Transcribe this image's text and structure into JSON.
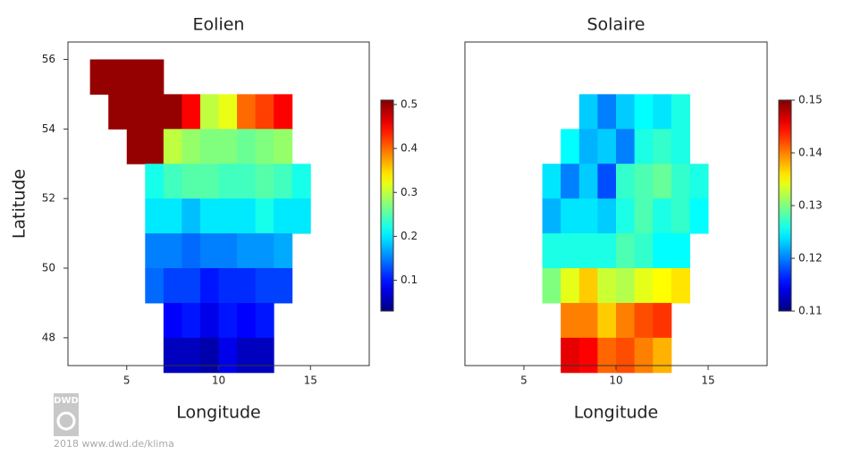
{
  "chart_data": [
    {
      "type": "heatmap",
      "title": "Eolien",
      "xlabel": "Longitude",
      "ylabel": "Latitude",
      "x": [
        3.5,
        4.5,
        5.5,
        6.5,
        7.5,
        8.5,
        9.5,
        10.5,
        11.5,
        12.5,
        13.5,
        14.5
      ],
      "y": [
        55.5,
        54.5,
        53.5,
        52.5,
        51.5,
        50.5,
        49.5,
        48.5,
        47.5
      ],
      "values": [
        [
          0.5,
          0.5,
          0.5,
          0.5,
          null,
          null,
          null,
          null,
          null,
          null,
          null,
          null
        ],
        [
          null,
          0.5,
          0.5,
          0.5,
          0.5,
          0.45,
          0.3,
          0.32,
          0.4,
          0.42,
          0.45,
          null
        ],
        [
          null,
          null,
          0.5,
          0.5,
          0.3,
          0.28,
          0.27,
          0.27,
          0.26,
          0.27,
          0.28,
          null
        ],
        [
          null,
          null,
          null,
          0.22,
          0.24,
          0.25,
          0.25,
          0.24,
          0.24,
          0.25,
          0.24,
          0.22
        ],
        [
          null,
          null,
          null,
          0.2,
          0.2,
          0.18,
          0.2,
          0.2,
          0.2,
          0.22,
          0.2,
          0.2
        ],
        [
          null,
          null,
          null,
          0.15,
          0.15,
          0.14,
          0.15,
          0.15,
          0.16,
          0.16,
          0.17,
          null
        ],
        [
          null,
          null,
          null,
          0.14,
          0.12,
          0.12,
          0.1,
          0.11,
          0.11,
          0.12,
          0.12,
          null
        ],
        [
          null,
          null,
          null,
          null,
          0.09,
          0.1,
          0.08,
          0.1,
          0.09,
          0.1,
          null,
          null
        ],
        [
          null,
          null,
          null,
          null,
          0.06,
          0.06,
          0.05,
          0.08,
          0.06,
          0.06,
          null,
          null
        ]
      ],
      "xlim": [
        1.8,
        18.2
      ],
      "ylim": [
        47.2,
        56.5
      ],
      "xticks": [
        5,
        10,
        15
      ],
      "yticks": [
        48,
        50,
        52,
        54,
        56
      ],
      "colormap": "jet",
      "clim": [
        0.03,
        0.51
      ],
      "cticks": [
        0.1,
        0.2,
        0.3,
        0.4,
        0.5
      ]
    },
    {
      "type": "heatmap",
      "title": "Solaire",
      "xlabel": "Longitude",
      "x": [
        3.5,
        4.5,
        5.5,
        6.5,
        7.5,
        8.5,
        9.5,
        10.5,
        11.5,
        12.5,
        13.5,
        14.5
      ],
      "y": [
        55.5,
        54.5,
        53.5,
        52.5,
        51.5,
        50.5,
        49.5,
        48.5,
        47.5
      ],
      "values": [
        [
          null,
          null,
          null,
          null,
          null,
          null,
          null,
          null,
          null,
          null,
          null,
          null
        ],
        [
          null,
          null,
          null,
          null,
          null,
          0.123,
          0.12,
          0.123,
          0.125,
          0.124,
          0.126,
          null
        ],
        [
          null,
          null,
          null,
          null,
          0.125,
          0.122,
          0.123,
          0.12,
          0.126,
          0.127,
          0.126,
          null
        ],
        [
          null,
          null,
          null,
          0.124,
          0.12,
          0.123,
          0.118,
          0.127,
          0.128,
          0.129,
          0.127,
          0.126
        ],
        [
          null,
          null,
          null,
          0.122,
          0.124,
          0.124,
          0.123,
          0.126,
          0.128,
          0.126,
          0.127,
          0.125
        ],
        [
          null,
          null,
          null,
          0.126,
          0.126,
          0.126,
          0.126,
          0.128,
          0.127,
          0.125,
          0.125,
          null
        ],
        [
          null,
          null,
          null,
          0.13,
          0.134,
          0.137,
          0.133,
          0.132,
          0.134,
          0.135,
          0.136,
          null
        ],
        [
          null,
          null,
          null,
          null,
          0.14,
          0.14,
          0.137,
          0.14,
          0.142,
          0.143,
          null,
          null
        ],
        [
          null,
          null,
          null,
          null,
          0.146,
          0.145,
          0.141,
          0.142,
          0.14,
          0.138,
          null,
          null
        ]
      ],
      "xlim": [
        1.8,
        18.2
      ],
      "ylim": [
        47.2,
        56.5
      ],
      "xticks": [
        5,
        10,
        15
      ],
      "colormap": "jet",
      "clim": [
        0.11,
        0.15
      ],
      "cticks": [
        0.11,
        0.12,
        0.13,
        0.14,
        0.15
      ]
    }
  ],
  "footer": {
    "logo": "DWD",
    "text": "2018  www.dwd.de/klima"
  }
}
